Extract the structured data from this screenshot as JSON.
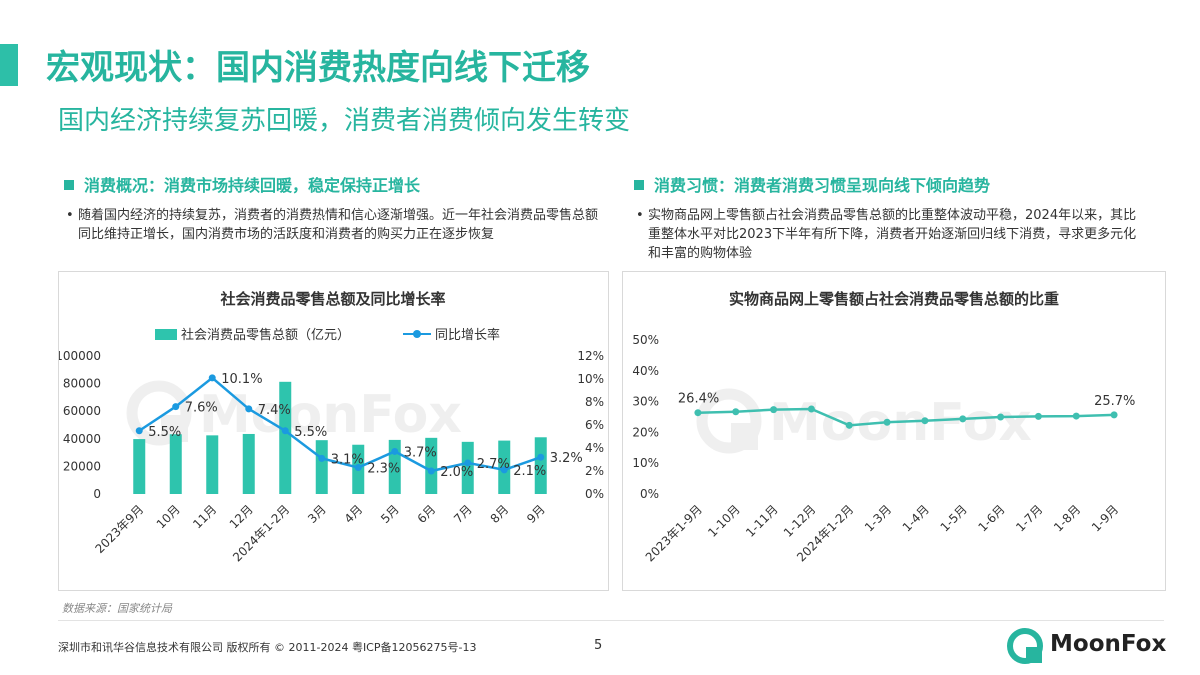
{
  "header": {
    "title": "宏观现状：国内消费热度向线下迁移",
    "subtitle": "国内经济持续复苏回暖，消费者消费倾向发生转变"
  },
  "left": {
    "heading": "消费概况：消费市场持续回暖，稳定保持正增长",
    "bullet": "随着国内经济的持续复苏，消费者的消费热情和信心逐渐增强。近一年社会消费品零售总额同比维持正增长，国内消费市场的活跃度和消费者的购买力正在逐步恢复"
  },
  "right": {
    "heading": "消费习惯：消费者消费习惯呈现向线下倾向趋势",
    "bullet": "实物商品网上零售额占社会消费品零售总额的比重整体波动平稳，2024年以来，其比重整体水平对比2023下半年有所下降，消费者开始逐渐回归线下消费，寻求更多元化和丰富的购物体验"
  },
  "watermark": "MoonFox",
  "colors": {
    "accent": "#27b59f",
    "bar": "#2ec4ad",
    "line_blue": "#1b9ae0",
    "line_teal": "#3fbfb0"
  },
  "chart_data": [
    {
      "type": "bar",
      "title": "社会消费品零售总额及同比增长率",
      "categories": [
        "2023年9月",
        "10月",
        "11月",
        "12月",
        "2024年1-2月",
        "3月",
        "4月",
        "5月",
        "6月",
        "7月",
        "8月",
        "9月"
      ],
      "series": [
        {
          "name": "社会消费品零售总额（亿元）",
          "type": "bar",
          "axis": "left",
          "values": [
            39800,
            43300,
            42500,
            43500,
            81300,
            39000,
            35700,
            39200,
            40700,
            37800,
            38700,
            41100
          ]
        },
        {
          "name": "同比增长率",
          "type": "line",
          "axis": "right",
          "values": [
            5.5,
            7.6,
            10.1,
            7.4,
            5.5,
            3.1,
            2.3,
            3.7,
            2.0,
            2.7,
            2.1,
            3.2
          ],
          "labels": [
            "5.5%",
            "7.6%",
            "10.1%",
            "7.4%",
            "5.5%",
            "3.1%",
            "2.3%",
            "3.7%",
            "2.0%",
            "2.7%",
            "2.1%",
            "3.2%"
          ]
        }
      ],
      "ylim_left": [
        0,
        100000
      ],
      "yticks_left": [
        "0",
        "20000",
        "40000",
        "60000",
        "80000",
        "100000"
      ],
      "ylim_right": [
        0,
        12
      ],
      "yticks_right": [
        "0%",
        "2%",
        "4%",
        "6%",
        "8%",
        "10%",
        "12%"
      ],
      "legend": "top"
    },
    {
      "type": "line",
      "title": "实物商品网上零售额占社会消费品零售总额的比重",
      "categories": [
        "2023年1-9月",
        "1-10月",
        "1-11月",
        "1-12月",
        "2024年1-2月",
        "1-3月",
        "1-4月",
        "1-5月",
        "1-6月",
        "1-7月",
        "1-8月",
        "1-9月"
      ],
      "series": [
        {
          "values": [
            26.4,
            26.7,
            27.4,
            27.6,
            22.3,
            23.3,
            23.8,
            24.4,
            25.0,
            25.2,
            25.3,
            25.7
          ]
        }
      ],
      "point_labels": {
        "first": "26.4%",
        "last": "25.7%"
      },
      "ylim": [
        0,
        50
      ],
      "yticks": [
        "0%",
        "10%",
        "20%",
        "30%",
        "40%",
        "50%"
      ]
    }
  ],
  "footer": {
    "source": "数据来源：国家统计局",
    "copyright": "深圳市和讯华谷信息技术有限公司 版权所有 © 2011-2024 粤ICP备12056275号-13",
    "page": "5",
    "logo_text": "MoonFox"
  }
}
